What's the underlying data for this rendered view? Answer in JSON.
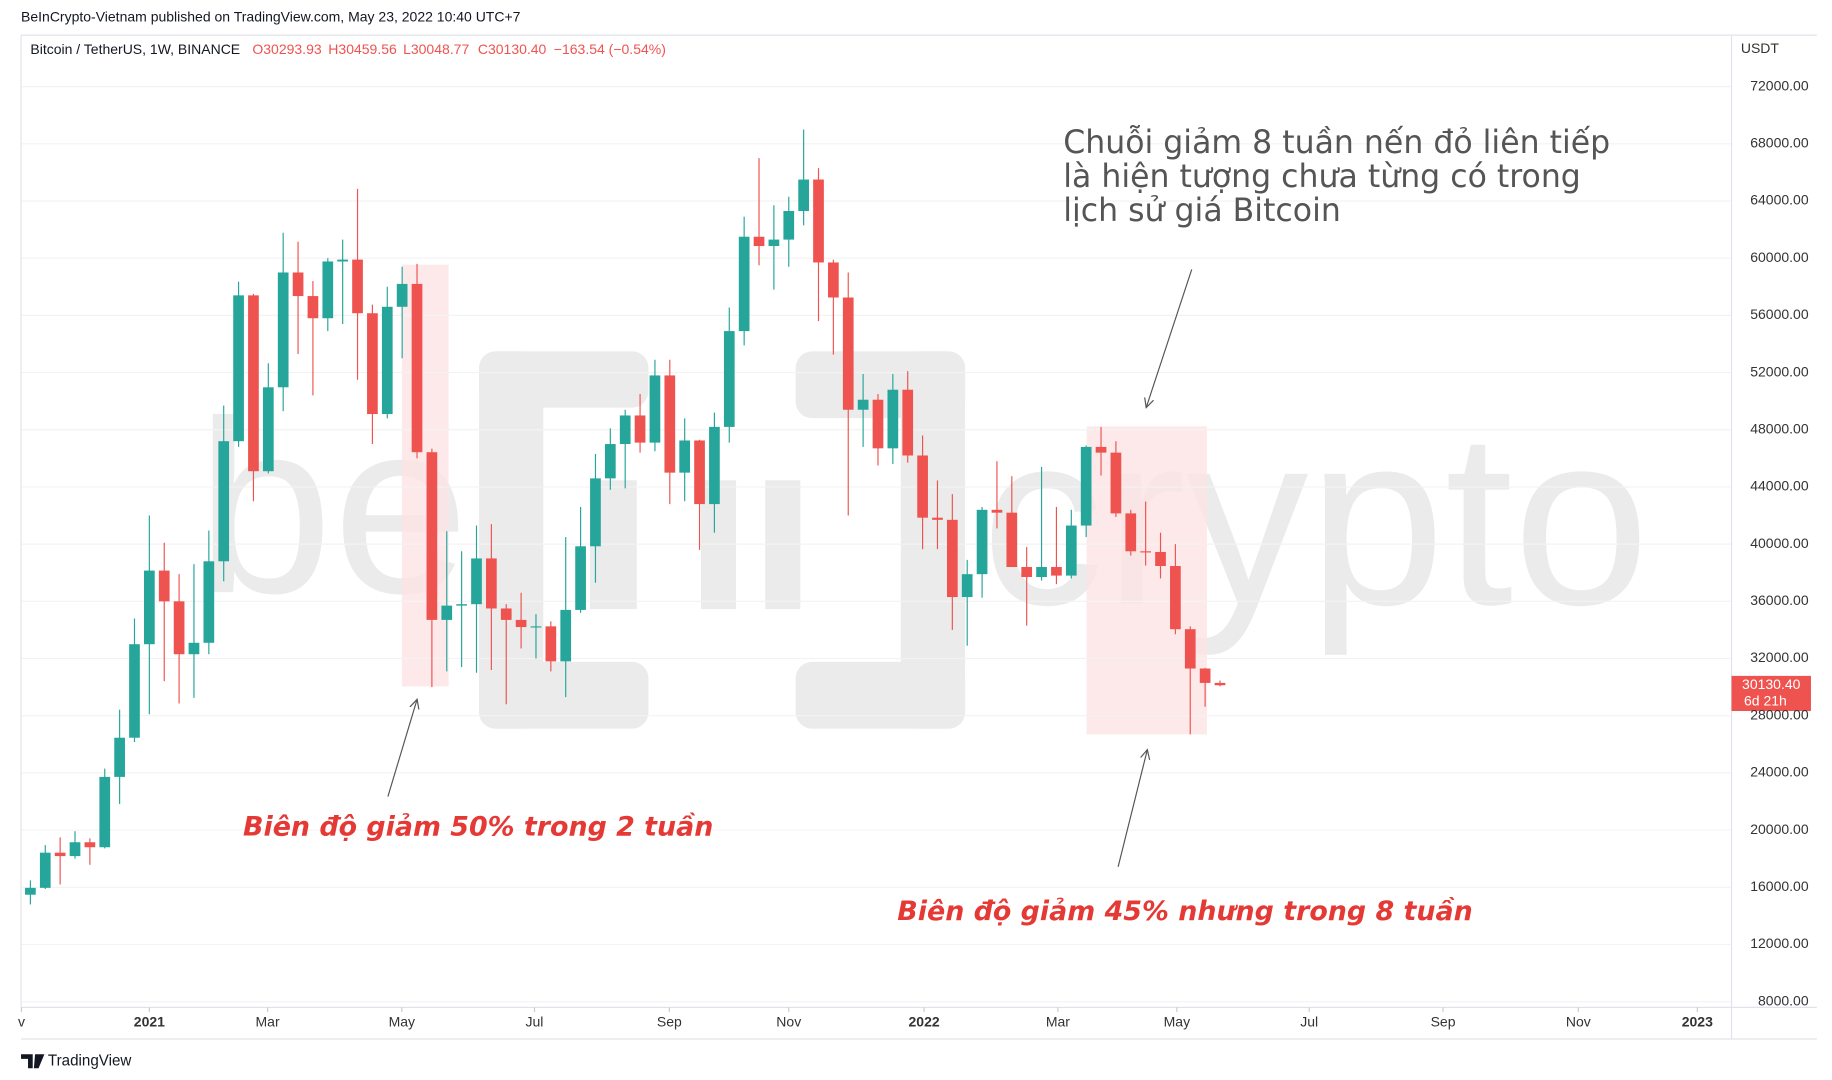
{
  "header": "BeInCrypto-Vietnam published on TradingView.com, May 23, 2022 10:40 UTC+7",
  "footer": "TradingView",
  "chart_data": {
    "type": "candlestick",
    "legend": {
      "symbol": "Bitcoin / TetherUS, 1W, BINANCE",
      "open": "O30293.93",
      "high": "H30459.56",
      "low": "L30048.77",
      "close": "C30130.40",
      "change": "−163.54 (−0.54%)"
    },
    "y_axis_unit": "USDT",
    "last_price_label": "30130.40",
    "countdown": "6d 21h",
    "up_color": "#26a69a",
    "down_color": "#ef5350",
    "open": [
      15480,
      15960,
      18420,
      18180,
      19150,
      18800,
      23720,
      26460,
      33000,
      38150,
      36000,
      32300,
      33100,
      38800,
      47200,
      57400,
      45100,
      50970,
      59000,
      57350,
      55800,
      59770,
      59900,
      56150,
      49100,
      56600,
      58200,
      46430,
      34700,
      35700,
      35800,
      39000,
      35500,
      34700,
      34200,
      34250,
      31800,
      35400,
      39850,
      44600,
      47000,
      49000,
      47100,
      51800,
      45000,
      47250,
      42800,
      48200,
      54900,
      61500,
      60850,
      61300,
      63300,
      65500,
      59700,
      57250,
      49400,
      50100,
      46700,
      50800,
      46200,
      41850,
      41700,
      36300,
      37900,
      42400,
      42200,
      38400,
      37700,
      38400,
      37800,
      41300,
      46800,
      46400,
      42150,
      39500,
      39450,
      38470,
      34050,
      31300,
      30293.93
    ],
    "high": [
      16480,
      18950,
      19490,
      19920,
      19420,
      24300,
      28420,
      34800,
      42000,
      40100,
      37900,
      38600,
      40950,
      49700,
      58350,
      57500,
      52650,
      61780,
      61150,
      58400,
      60000,
      61300,
      64850,
      56750,
      58000,
      59400,
      59600,
      46680,
      40900,
      39500,
      41300,
      41400,
      35800,
      36600,
      35100,
      34600,
      40500,
      42600,
      46300,
      48100,
      49400,
      50500,
      52900,
      52900,
      48800,
      47300,
      49200,
      56550,
      62900,
      67000,
      63700,
      64300,
      69000,
      66300,
      59900,
      59000,
      51900,
      50500,
      51900,
      52100,
      47600,
      44450,
      43500,
      38900,
      42600,
      45800,
      44750,
      39800,
      45400,
      42600,
      42400,
      46900,
      48200,
      47200,
      42400,
      42980,
      40800,
      40000,
      34250,
      31340,
      30459.56
    ],
    "low": [
      14800,
      15880,
      16200,
      18000,
      17570,
      18720,
      21820,
      26160,
      28100,
      30420,
      28850,
      29250,
      32300,
      37400,
      46800,
      43000,
      44950,
      49300,
      53300,
      50400,
      54900,
      55400,
      51500,
      47000,
      48800,
      53000,
      46000,
      30000,
      31100,
      31400,
      31000,
      31200,
      28800,
      32700,
      32000,
      31100,
      29300,
      35200,
      37300,
      43800,
      43900,
      46400,
      46500,
      42800,
      43000,
      39600,
      40800,
      47100,
      53900,
      59500,
      57800,
      59400,
      62300,
      55600,
      53250,
      42000,
      46800,
      45500,
      45600,
      45700,
      39650,
      39650,
      34000,
      32900,
      36250,
      41100,
      38400,
      34300,
      37450,
      37200,
      37600,
      40500,
      44800,
      41900,
      39200,
      38500,
      37600,
      33700,
      26700,
      28630,
      30048.77
    ],
    "close": [
      15960,
      18420,
      18180,
      19150,
      18800,
      23720,
      26460,
      33000,
      38150,
      36000,
      32300,
      33100,
      38800,
      47200,
      57400,
      45100,
      50970,
      59000,
      57350,
      55800,
      59770,
      59900,
      56150,
      49100,
      56600,
      58200,
      46430,
      34700,
      35700,
      35800,
      39000,
      35500,
      34700,
      34200,
      34250,
      31800,
      35400,
      39850,
      44600,
      47000,
      49000,
      47100,
      51800,
      45000,
      47250,
      42800,
      48200,
      54900,
      61500,
      60850,
      61300,
      63300,
      65500,
      59700,
      57250,
      49400,
      50100,
      46700,
      50800,
      46200,
      41850,
      41700,
      36300,
      37900,
      42400,
      42200,
      38400,
      37700,
      38400,
      37800,
      41300,
      46800,
      46400,
      42150,
      39500,
      39450,
      38470,
      34050,
      31300,
      30294,
      30130.4
    ],
    "xlim": [
      -0.63,
      114.4
    ],
    "xticks": [
      {
        "value": -0.6,
        "label": "v"
      },
      8,
      {
        "value": 15.95,
        "label": "Mar"
      },
      {
        "value": 24.98,
        "label": "May"
      },
      {
        "value": 33.9,
        "label": "Jul"
      },
      {
        "value": 42.97,
        "label": "Sep"
      },
      {
        "value": 51,
        "label": "Nov"
      },
      60.1,
      {
        "value": 69.1,
        "label": "Mar"
      },
      {
        "value": 77.1,
        "label": "May"
      },
      {
        "value": 86,
        "label": "Jul"
      },
      {
        "value": 95,
        "label": "Sep"
      },
      {
        "value": 104.1,
        "label": "Nov"
      },
      112.1
    ],
    "xtick_labels_override": [
      "v",
      "2021",
      "Mar",
      "May",
      "Jul",
      "Sep",
      "Nov",
      "2022",
      "Mar",
      "May",
      "Jul",
      "Sep",
      "Nov",
      "2023"
    ],
    "ylim": [
      7600,
      75600
    ],
    "yticks": [
      {
        "value": 8000,
        "label": "8000.00"
      },
      {
        "value": 12000,
        "label": "12000.00"
      },
      {
        "value": 16000,
        "label": "16000.00"
      },
      {
        "value": 20000,
        "label": "20000.00"
      },
      {
        "value": 24000,
        "label": "24000.00"
      },
      {
        "value": 28000,
        "label": "28000.00"
      },
      {
        "value": 32000,
        "label": "32000.00"
      },
      {
        "value": 36000,
        "label": "36000.00"
      },
      {
        "value": 40000,
        "label": "40000.00"
      },
      {
        "value": 44000,
        "label": "44000.00"
      },
      {
        "value": 48000,
        "label": "48000.00"
      },
      {
        "value": 52000,
        "label": "52000.00"
      },
      {
        "value": 56000,
        "label": "56000.00"
      },
      {
        "value": 60000,
        "label": "60000.00"
      },
      {
        "value": 64000,
        "label": "64000.00"
      },
      {
        "value": 68000,
        "label": "68000.00"
      },
      {
        "value": 72000,
        "label": "72000.00"
      }
    ],
    "annotations": {
      "note_lines": [
        "Chuỗi giảm 8 tuần nến đỏ liên tiếp",
        "là hiện tượng chưa từng có trong",
        "lịch sử giá Bitcoin"
      ],
      "drop_2_weeks": "Biên độ giảm 50% trong 2 tuần",
      "drop_8_weeks": "Biên độ giảm 45% nhưng trong 8 tuần"
    },
    "watermark": {
      "left": "be",
      "right": "crypto"
    }
  }
}
